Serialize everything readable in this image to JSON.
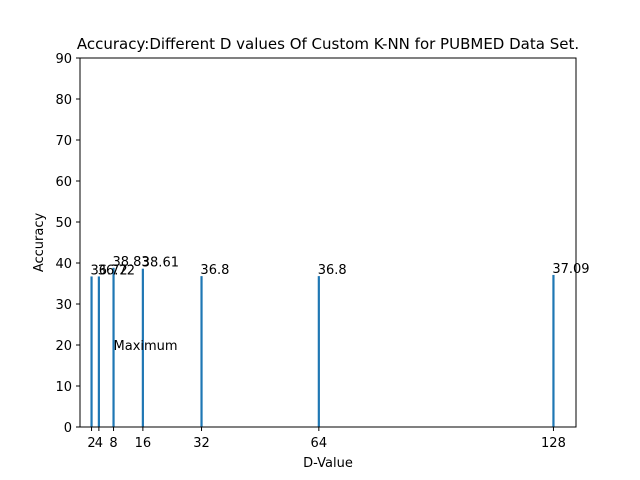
{
  "chart_data": {
    "type": "bar",
    "title": "Accuracy:Different D values Of Custom K-NN for PUBMED Data Set.",
    "xlabel": "D-Value",
    "ylabel": "Accuracy",
    "x": [
      2,
      4,
      8,
      16,
      32,
      64,
      128
    ],
    "values": [
      36.72,
      36.72,
      38.83,
      38.61,
      36.8,
      36.8,
      37.09
    ],
    "data_labels": [
      "36.72",
      "36.72",
      "38.83",
      "38.61",
      "36.8",
      "36.8",
      "37.09"
    ],
    "xticks": [
      2,
      4,
      8,
      16,
      32,
      64,
      128
    ],
    "xtick_labels": [
      "2",
      "4",
      "8",
      "16",
      "32",
      "64",
      "128"
    ],
    "yticks": [
      0,
      10,
      20,
      30,
      40,
      50,
      60,
      70,
      80,
      90
    ],
    "ytick_labels": [
      "0",
      "10",
      "20",
      "30",
      "40",
      "50",
      "60",
      "70",
      "80",
      "90"
    ],
    "xlim": [
      -1.15,
      134.15
    ],
    "ylim": [
      0,
      90
    ],
    "bar_width": 0.6,
    "grid": false,
    "legend": "none",
    "bar_color": "#1f77b4",
    "annotations": [
      {
        "text": "Maximum",
        "x": 8,
        "y": 20
      }
    ]
  }
}
